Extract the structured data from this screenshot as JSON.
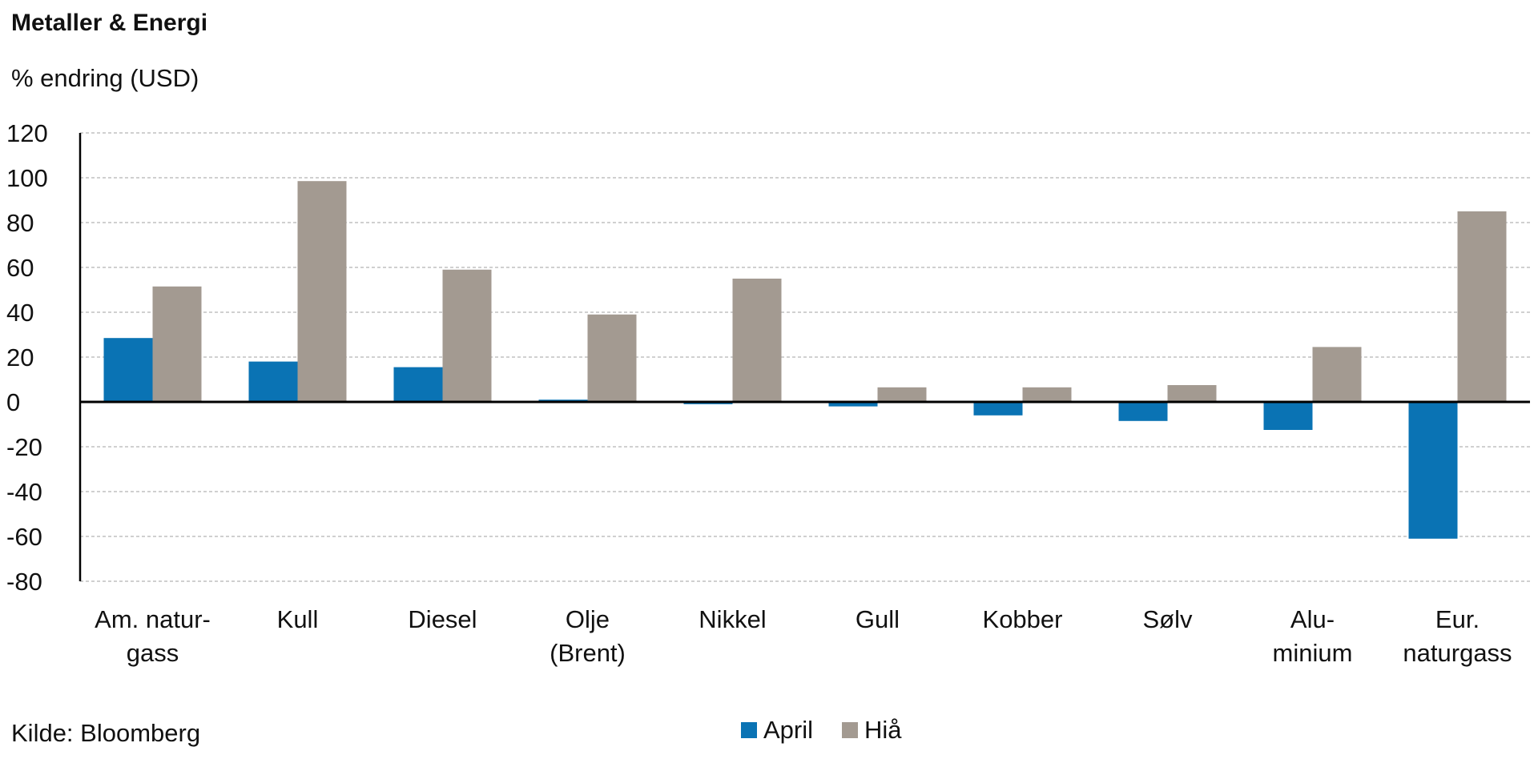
{
  "chart_data": {
    "type": "bar",
    "title": "Metaller & Energi",
    "ylabel": "% endring (USD)",
    "source": "Kilde: Bloomberg",
    "ylim": [
      -80,
      120
    ],
    "yticks": [
      120,
      100,
      80,
      60,
      40,
      20,
      0,
      -20,
      -40,
      -60,
      -80
    ],
    "grid": true,
    "legend_position": "bottom",
    "categories": [
      [
        "Am. natur-",
        "gass"
      ],
      [
        "Kull"
      ],
      [
        "Diesel"
      ],
      [
        "Olje",
        "(Brent)"
      ],
      [
        "Nikkel"
      ],
      [
        "Gull"
      ],
      [
        "Kobber"
      ],
      [
        "Sølv"
      ],
      [
        "Alu-",
        "minium"
      ],
      [
        "Eur.",
        "naturgass"
      ]
    ],
    "series": [
      {
        "name": "April",
        "color": "#0a73b4",
        "values": [
          28.5,
          18,
          15.5,
          1,
          -1,
          -2,
          -6,
          -8.5,
          -12.5,
          -61
        ]
      },
      {
        "name": "Hiå",
        "color": "#a39a91",
        "values": [
          51.5,
          98.5,
          59,
          39,
          55,
          6.5,
          6.5,
          7.5,
          24.5,
          85
        ]
      }
    ]
  }
}
